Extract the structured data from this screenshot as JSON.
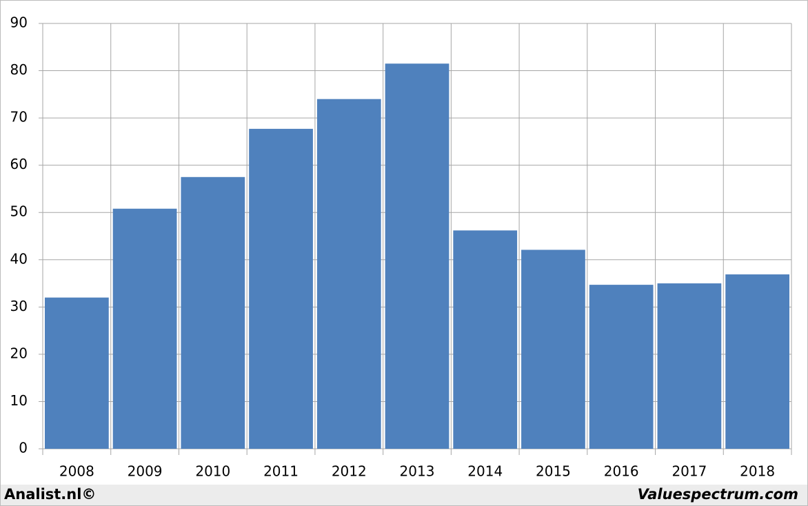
{
  "chart_data": {
    "type": "bar",
    "categories": [
      "2008",
      "2009",
      "2010",
      "2011",
      "2012",
      "2013",
      "2014",
      "2015",
      "2016",
      "2017",
      "2018"
    ],
    "values": [
      32,
      50.8,
      57.5,
      67.7,
      74,
      81.5,
      46.2,
      42.1,
      34.7,
      35,
      36.9
    ],
    "color": "#4f81bd",
    "ylim": [
      0,
      90
    ],
    "yticks": [
      0,
      10,
      20,
      30,
      40,
      50,
      60,
      70,
      80,
      90
    ],
    "grid": true,
    "credits": [
      "Analist.nl©",
      "Valuespectrum.com"
    ]
  }
}
